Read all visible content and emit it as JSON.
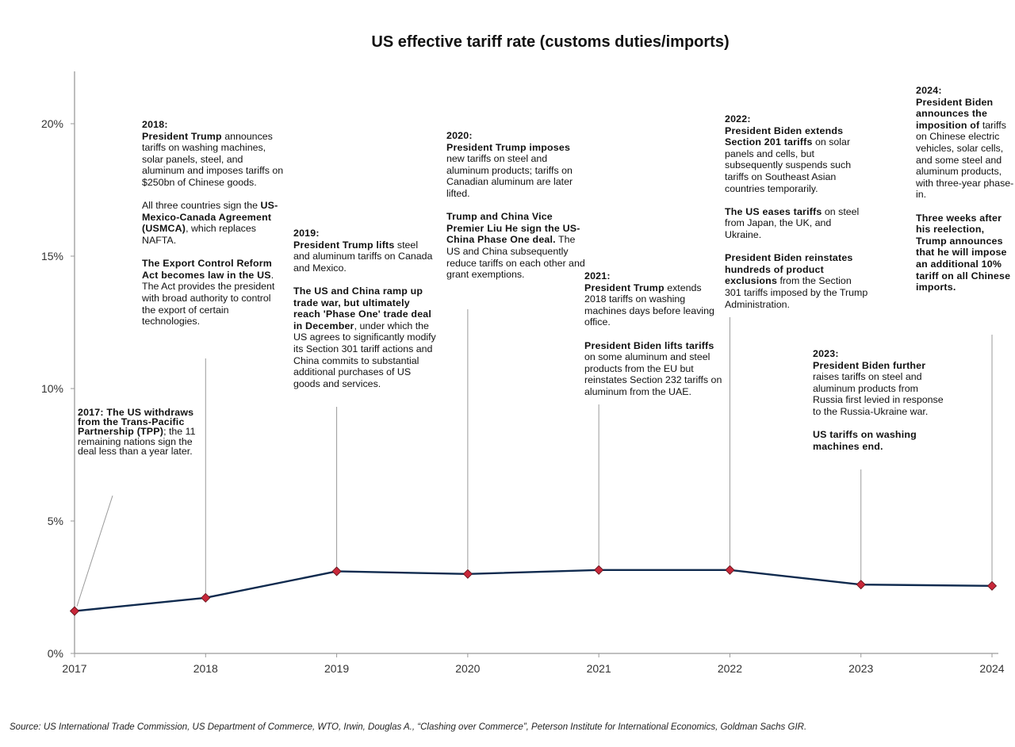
{
  "chart_data": {
    "type": "line",
    "title": "US effective tariff rate (customs duties/imports)",
    "xlabel": "",
    "ylabel": "",
    "x": [
      "2017",
      "2018",
      "2019",
      "2020",
      "2021",
      "2022",
      "2023",
      "2024"
    ],
    "series": [
      {
        "name": "US effective tariff rate",
        "values": [
          1.6,
          2.1,
          3.1,
          3.0,
          3.15,
          3.15,
          2.6,
          2.55
        ]
      }
    ],
    "ylim": [
      0,
      22
    ],
    "yticks": [
      0,
      5,
      10,
      15,
      20
    ],
    "ytick_labels": [
      "0%",
      "5%",
      "10%",
      "15%",
      "20%"
    ],
    "grid": false,
    "legend": "none",
    "colors": {
      "line": "#0f2a4e",
      "marker": "#c8283a",
      "marker_edge": "#5a1018",
      "axis": "#9a9a9a",
      "leader": "#9a9a9a"
    },
    "annotations": [
      {
        "year": "2017",
        "paragraphs": [
          [
            {
              "t": "2017: The US withdraws from the Trans-Pacific Partnership (TPP)",
              "b": true
            },
            {
              "t": "; the 11 remaining nations sign the deal less than a year later.",
              "b": false
            }
          ]
        ]
      },
      {
        "year": "2018",
        "paragraphs": [
          [
            {
              "t": "2018:\nPresident Trump",
              "b": true
            },
            {
              "t": " announces tariffs on washing machines, solar panels, steel, and aluminum and imposes tariffs on $250bn of Chinese goods.",
              "b": false
            }
          ],
          [
            {
              "t": "All three countries sign the ",
              "b": false
            },
            {
              "t": "US-Mexico-Canada Agreement (USMCA)",
              "b": true
            },
            {
              "t": ", which replaces NAFTA.",
              "b": false
            }
          ],
          [
            {
              "t": "The Export Control Reform Act becomes law in the US",
              "b": true
            },
            {
              "t": ". The Act provides the president with broad authority to control the export of certain technologies.",
              "b": false
            }
          ]
        ]
      },
      {
        "year": "2019",
        "paragraphs": [
          [
            {
              "t": "2019:\nPresident Trump lifts",
              "b": true
            },
            {
              "t": " steel and aluminum tariffs on Canada and Mexico.",
              "b": false
            }
          ],
          [
            {
              "t": "The US and China ramp up trade war, but ultimately reach 'Phase One' trade deal in December",
              "b": true
            },
            {
              "t": ", under which the US agrees to significantly modify its Section 301 tariff actions and China commits to substantial additional purchases of US goods and services.",
              "b": false
            }
          ]
        ]
      },
      {
        "year": "2020",
        "paragraphs": [
          [
            {
              "t": "2020:\nPresident Trump imposes",
              "b": true
            },
            {
              "t": " new tariffs on steel and aluminum products; tariffs on Canadian aluminum are later lifted.",
              "b": false
            }
          ],
          [
            {
              "t": "Trump and China Vice Premier Liu He sign the US-China Phase One deal.",
              "b": true
            },
            {
              "t": " The US and China subsequently reduce tariffs on each other and grant exemptions.",
              "b": false
            }
          ]
        ]
      },
      {
        "year": "2021",
        "paragraphs": [
          [
            {
              "t": "2021:\nPresident Trump",
              "b": true
            },
            {
              "t": " extends 2018 tariffs on washing machines days before leaving office.",
              "b": false
            }
          ],
          [
            {
              "t": "President Biden lifts tariffs",
              "b": true
            },
            {
              "t": " on some aluminum and steel products from the EU but reinstates Section 232 tariffs on aluminum from the UAE.",
              "b": false
            }
          ]
        ]
      },
      {
        "year": "2022",
        "paragraphs": [
          [
            {
              "t": "2022:\nPresident Biden extends Section 201 tariffs",
              "b": true
            },
            {
              "t": " on solar panels and cells, but subsequently suspends such tariffs on Southeast Asian countries temporarily.",
              "b": false
            }
          ],
          [
            {
              "t": "The US eases tariffs",
              "b": true
            },
            {
              "t": " on steel from Japan, the UK, and Ukraine.",
              "b": false
            }
          ],
          [
            {
              "t": "President Biden reinstates hundreds of product exclusions",
              "b": true
            },
            {
              "t": " from the Section 301 tariffs imposed by the Trump Administration.",
              "b": false
            }
          ]
        ]
      },
      {
        "year": "2023",
        "paragraphs": [
          [
            {
              "t": "2023:\nPresident Biden further",
              "b": true
            },
            {
              "t": " raises tariffs on steel and aluminum products from Russia first levied in response to the Russia-Ukraine war.",
              "b": false
            }
          ],
          [
            {
              "t": "US tariffs on washing machines end.",
              "b": true
            }
          ]
        ]
      },
      {
        "year": "2024",
        "paragraphs": [
          [
            {
              "t": "2024:\nPresident Biden announces the imposition of",
              "b": true
            },
            {
              "t": " tariffs on Chinese electric vehicles, solar cells, and some steel and aluminum products, with three-year phase-in.",
              "b": false
            }
          ],
          [
            {
              "t": "Three weeks after his reelection, Trump announces that he will impose an additional 10% tariff on all Chinese imports.",
              "b": true
            }
          ]
        ]
      }
    ]
  },
  "source_note": "Source: US International Trade Commission, US Department of Commerce, WTO, Irwin, Douglas A., “Clashing over Commerce”, Peterson Institute for International Economics, Goldman Sachs GIR."
}
